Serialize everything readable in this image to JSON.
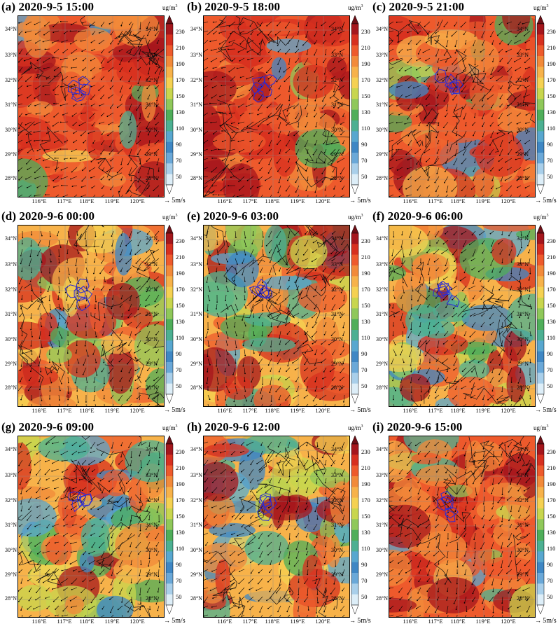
{
  "panels": [
    {
      "title": "(a) 2020-9-5 15:00",
      "hot": 0.8
    },
    {
      "title": "(b) 2020-9-5 18:00",
      "hot": 0.85
    },
    {
      "title": "(c) 2020-9-5 21:00",
      "hot": 0.82
    },
    {
      "title": "(d) 2020-9-6 00:00",
      "hot": 0.55
    },
    {
      "title": "(e) 2020-9-6 03:00",
      "hot": 0.45
    },
    {
      "title": "(f) 2020-9-6 06:00",
      "hot": 0.38
    },
    {
      "title": "(g) 2020-9-6 09:00",
      "hot": 0.35
    },
    {
      "title": "(h) 2020-9-6 12:00",
      "hot": 0.38
    },
    {
      "title": "(i) 2020-9-6 15:00",
      "hot": 0.75
    }
  ],
  "lat_labels": [
    "34°N",
    "33°N",
    "32°N",
    "31°N",
    "30°N",
    "29°N",
    "28°N"
  ],
  "lon_labels": [
    "116°E",
    "117°E",
    "118°E",
    "119°E",
    "120°E"
  ],
  "colorbar": {
    "unit": "ug/m",
    "unit_sup": "3",
    "labels": [
      "230",
      "210",
      "190",
      "170",
      "150",
      "130",
      "110",
      "90",
      "70",
      "50"
    ],
    "colors": [
      "#6e0f16",
      "#a5161c",
      "#d7301f",
      "#ee5a2c",
      "#f28a3a",
      "#f7b24a",
      "#f5d152",
      "#c8d64e",
      "#8fc85a",
      "#4fae5a",
      "#4cb092",
      "#58a7cf",
      "#3f87c4",
      "#6aa8d8",
      "#a9cfea",
      "#ddeef8",
      "#ffffff"
    ]
  },
  "vector_legend": "5m/s"
}
